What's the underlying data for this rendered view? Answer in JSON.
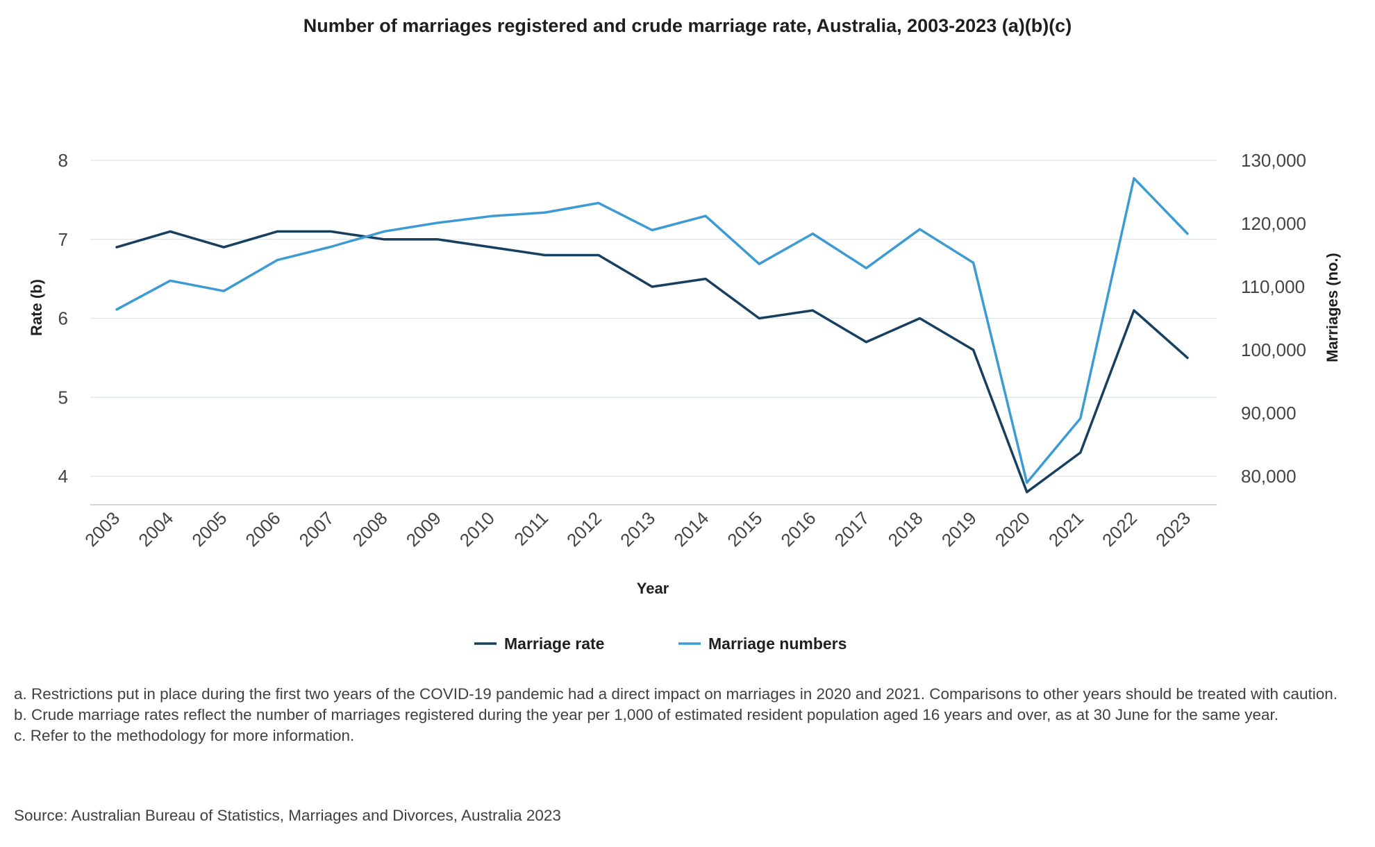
{
  "title": "Number of marriages registered and crude marriage rate, Australia, 2003-2023 (a)(b)(c)",
  "notes": [
    "a. Restrictions put in place during the first two years of the COVID-19 pandemic had a direct impact on marriages in 2020 and 2021. Comparisons to other years should be treated with caution.",
    "b. Crude marriage rates reflect the number of marriages registered during the year per 1,000 of estimated resident population aged 16 years and over, as at 30 June for the same year.",
    "c. Refer to the methodology for more information."
  ],
  "source": "Source: Australian Bureau of Statistics, Marriages and Divorces, Australia 2023",
  "colors": {
    "marriage_rate": "#173f5f",
    "marriage_numbers": "#3d9bd3",
    "grid": "#dde3e8"
  },
  "chart_data": {
    "type": "line",
    "title": "Number of marriages registered and crude marriage rate, Australia, 2003-2023 (a)(b)(c)",
    "xlabel": "Year",
    "ylabel_left": "Rate (b)",
    "ylabel_right": "Marriages (no.)",
    "categories": [
      "2003",
      "2004",
      "2005",
      "2006",
      "2007",
      "2008",
      "2009",
      "2010",
      "2011",
      "2012",
      "2013",
      "2014",
      "2015",
      "2016",
      "2017",
      "2018",
      "2019",
      "2020",
      "2021",
      "2022",
      "2023"
    ],
    "y_left": {
      "ticks": [
        4,
        5,
        6,
        7,
        8
      ],
      "tick_labels": [
        "4",
        "5",
        "6",
        "7",
        "8"
      ],
      "range": [
        3.65,
        8
      ]
    },
    "y_right": {
      "ticks": [
        80000,
        90000,
        100000,
        110000,
        120000,
        130000
      ],
      "tick_labels": [
        "80,000",
        "90,000",
        "100,000",
        "110,000",
        "120,000",
        "130,000"
      ],
      "range": [
        76000,
        130000
      ]
    },
    "grid": true,
    "legend_position": "bottom",
    "series": [
      {
        "name": "Marriage rate",
        "axis": "left",
        "values": [
          6.9,
          7.1,
          6.9,
          7.1,
          7.1,
          7.0,
          7.0,
          6.9,
          6.8,
          6.8,
          6.4,
          6.5,
          6.0,
          6.1,
          5.7,
          6.0,
          5.6,
          3.8,
          4.3,
          6.1,
          5.5
        ]
      },
      {
        "name": "Marriage numbers",
        "axis": "right",
        "values": [
          106400,
          110960,
          109320,
          114220,
          116320,
          118760,
          120120,
          121180,
          121750,
          123250,
          118960,
          121200,
          113600,
          118400,
          112950,
          119100,
          113800,
          78990,
          89170,
          127160,
          118400
        ]
      }
    ]
  }
}
